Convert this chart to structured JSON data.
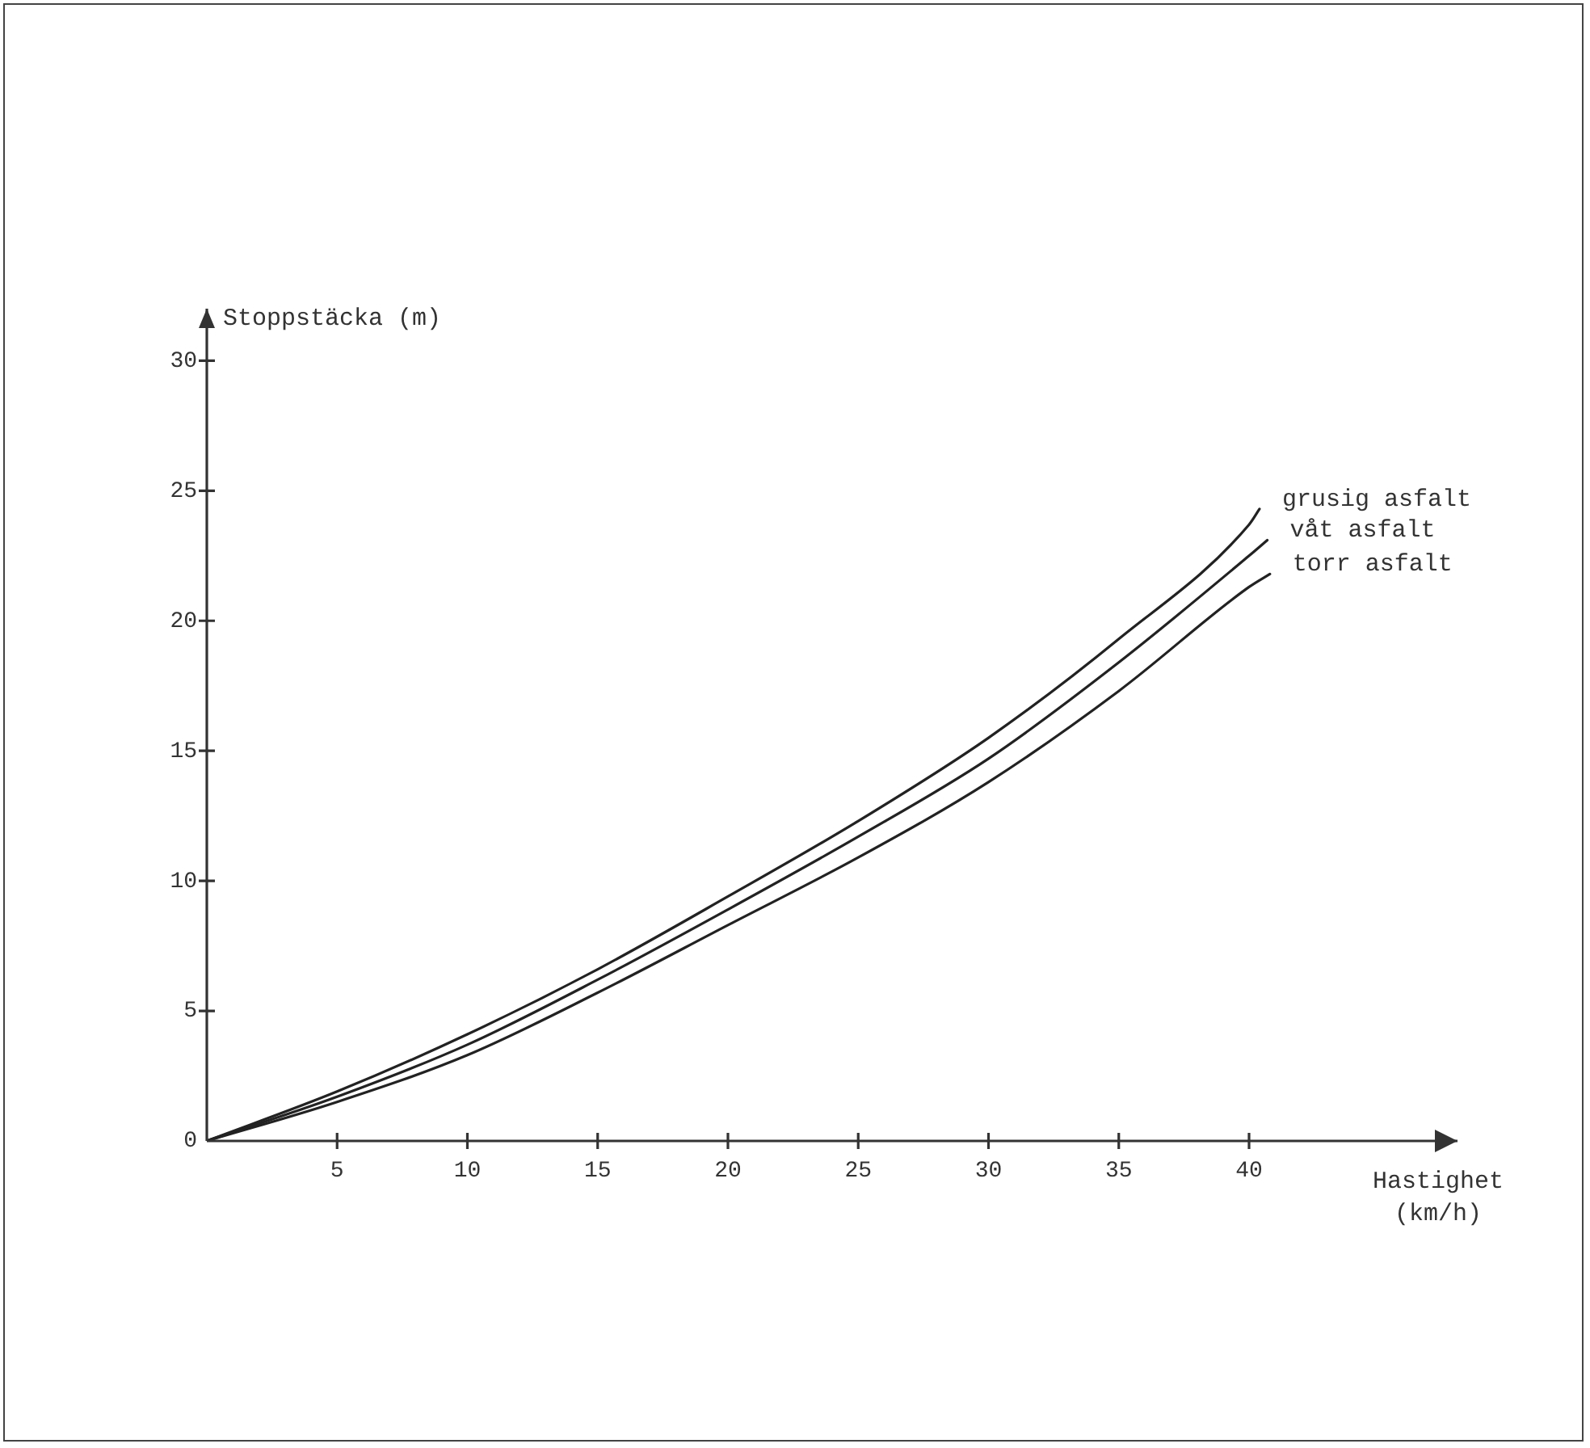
{
  "chart_data": {
    "type": "line",
    "xlabel": "Hastighet (km/h)",
    "ylabel": "Stoppstäcka (m)",
    "xlim": [
      0,
      48
    ],
    "ylim": [
      0,
      32
    ],
    "xticks": [
      5,
      10,
      15,
      20,
      25,
      30,
      35,
      40
    ],
    "yticks": [
      0,
      5,
      10,
      15,
      20,
      25,
      30
    ],
    "grid": false,
    "legend": false,
    "marker": "none",
    "line_style": "solid",
    "series": [
      {
        "name": "grusig asfalt",
        "color": "#222222",
        "x": [
          0,
          5,
          10,
          15,
          20,
          25,
          30,
          35,
          40,
          40.4
        ],
        "values": [
          0,
          1.9,
          4.1,
          6.6,
          9.4,
          12.3,
          15.5,
          19.3,
          23.7,
          24.3
        ]
      },
      {
        "name": "våt asfalt",
        "color": "#222222",
        "x": [
          0,
          5,
          10,
          15,
          20,
          25,
          30,
          35,
          40,
          40.7
        ],
        "values": [
          0,
          1.7,
          3.7,
          6.2,
          8.9,
          11.7,
          14.7,
          18.4,
          22.5,
          23.1
        ]
      },
      {
        "name": "torr asfalt",
        "color": "#222222",
        "x": [
          0,
          5,
          10,
          15,
          20,
          25,
          30,
          35,
          40,
          40.8
        ],
        "values": [
          0,
          1.5,
          3.3,
          5.7,
          8.3,
          10.9,
          13.8,
          17.3,
          21.3,
          21.8
        ]
      }
    ]
  }
}
